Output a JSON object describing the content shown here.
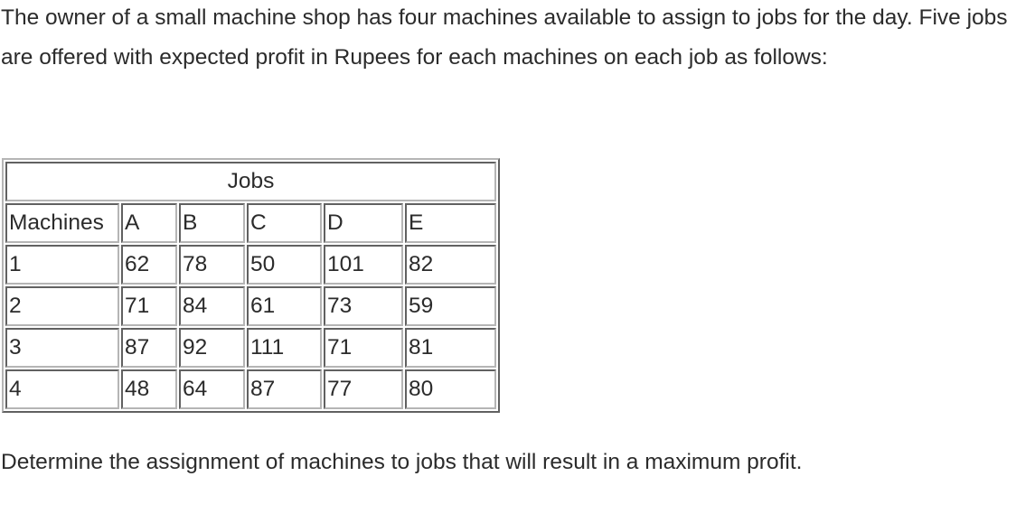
{
  "intro_text": "The owner of a small machine shop has four machines available to assign to jobs for the day. Five jobs are offered with expected profit in Rupees for each machines on each job as follows:",
  "table": {
    "caption": "Jobs",
    "header": [
      "Machines",
      "A",
      "B",
      "C",
      "D",
      "E"
    ],
    "rows": [
      [
        "1",
        "62",
        "78",
        "50",
        "101",
        "82"
      ],
      [
        "2",
        "71",
        "84",
        "61",
        "73",
        "59"
      ],
      [
        "3",
        "87",
        "92",
        "111",
        "71",
        "81"
      ],
      [
        "4",
        "48",
        "64",
        "87",
        "77",
        "80"
      ]
    ]
  },
  "outro_text": "Determine the assignment of machines to jobs that will result in a maximum profit."
}
